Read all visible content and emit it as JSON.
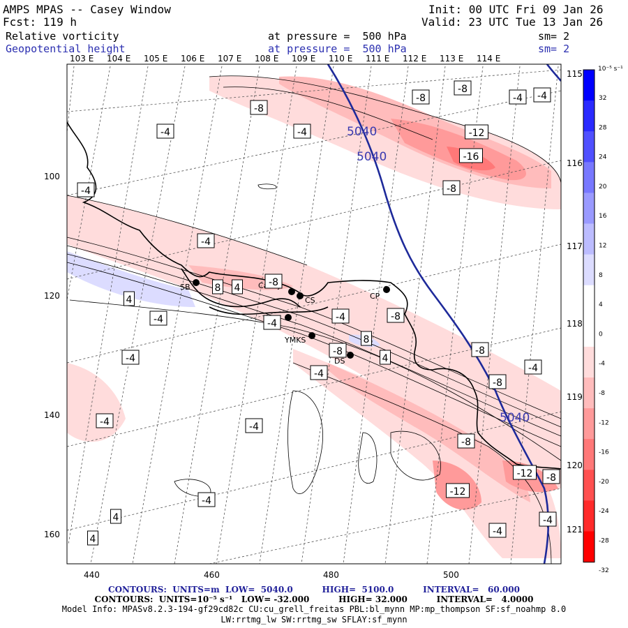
{
  "header": {
    "title": "AMPS MPAS -- Casey Window",
    "fcst": "Fcst: 119 h",
    "init": "Init: 00 UTC Fri 09 Jan 26",
    "valid": "Valid: 23 UTC Tue 13 Jan 26",
    "field1": "Relative vorticity",
    "field2": "Geopotential height",
    "press1": "at pressure =  500 hPa",
    "press2": "at pressure =  500 hPa",
    "sm1": "sm= 2",
    "sm2": "sm= 2"
  },
  "lon_top": [
    "103 E",
    "104 E",
    "105 E",
    "106 E",
    "107 E",
    "108 E",
    "109 E",
    "110 E",
    "111 E",
    "112 E",
    "113 E",
    "114 E"
  ],
  "lon_right": [
    "115 E",
    "116 E",
    "117 E",
    "118 E",
    "119 E",
    "120 E",
    "121 E"
  ],
  "x_ticks": [
    "440",
    "460",
    "480",
    "500"
  ],
  "y_ticks": [
    "100",
    "120",
    "140",
    "160"
  ],
  "colorbar": {
    "unit": "10⁻⁵ s⁻¹",
    "labels": [
      "32",
      "28",
      "24",
      "20",
      "16",
      "12",
      "8",
      "4",
      "0",
      "-4",
      "-8",
      "-12",
      "-16",
      "-20",
      "-24",
      "-28",
      "-32"
    ],
    "colors": [
      "#0000ff",
      "#2a2aff",
      "#5050ff",
      "#7878ff",
      "#9a9aff",
      "#bcbcff",
      "#dcdcff",
      "#ffffff",
      "#ffffff",
      "#ffdcdc",
      "#ffbcbc",
      "#ff9a9a",
      "#ff7878",
      "#ff5050",
      "#ff2a2a",
      "#ff0000"
    ]
  },
  "stations": [
    "SB",
    "Casey",
    "CS",
    "CP",
    "YMKS",
    "DS"
  ],
  "contour_labels": {
    "height": [
      "5040",
      "5040",
      "5040"
    ],
    "vort": [
      "-8",
      "-8",
      "-4",
      "-4",
      "-8",
      "-12",
      "-16",
      "-8",
      "-4",
      "-4",
      "-4",
      "-4",
      "-8",
      "8",
      "4",
      "4",
      "-4",
      "-4",
      "-4",
      "-8",
      "-4",
      "8",
      "-8",
      "4",
      "-4",
      "-4",
      "-4",
      "-4",
      "-8",
      "-8",
      "-4",
      "-8",
      "-12",
      "-12",
      "-4",
      "4",
      "4",
      "-4",
      "-8"
    ]
  },
  "footer": {
    "line1": "CONTOURS:  UNITS=m  LOW=  5040.0          HIGH=  5100.0          INTERVAL=   60.000",
    "line2": "CONTOURS:  UNITS=10⁻⁵ s⁻¹   LOW= -32.000          HIGH= 32.000          INTERVAL=   4.0000",
    "line3": "Model Info: MPASv8.2.3-194-gf29cd82c CU:cu_grell_freitas PBL:bl_mynn MP:mp_thompson SF:sf_noahmp 8.0",
    "line4": "LW:rrtmg_lw SW:rrtmg_sw SFLAY:sf_mynn"
  }
}
